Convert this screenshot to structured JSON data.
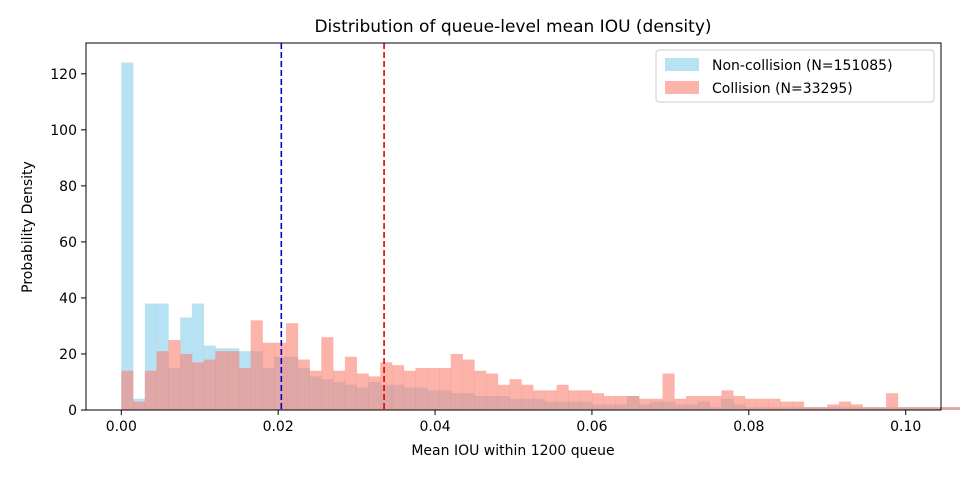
{
  "chart_data": {
    "type": "histogram",
    "title": "Distribution of queue-level mean IOU (density)",
    "xlabel": "Mean IOU within 1200 queue",
    "ylabel": "Probability Density",
    "xlim": [
      -0.0045,
      0.1045
    ],
    "ylim": [
      0,
      131
    ],
    "xticks": [
      "0.00",
      "0.02",
      "0.04",
      "0.06",
      "0.08",
      "0.10"
    ],
    "yticks": [
      "0",
      "20",
      "40",
      "60",
      "80",
      "100",
      "120"
    ],
    "bin_width": 0.0015,
    "bin_start": 0.0,
    "series": [
      {
        "name": "Non-collision (N=151085)",
        "color": "#87CEEB",
        "opacity": 0.6,
        "values": [
          124,
          4,
          38,
          38,
          15,
          33,
          38,
          23,
          22,
          22,
          21,
          21,
          15,
          19,
          19,
          15,
          12,
          11,
          10,
          9,
          8,
          10,
          9,
          9,
          8,
          8,
          7,
          7,
          6,
          6,
          5,
          5,
          5,
          4,
          4,
          4,
          3,
          3,
          3,
          3,
          2,
          2,
          2,
          5,
          2,
          3,
          3,
          2,
          2,
          3,
          1,
          4,
          2,
          1,
          1,
          1,
          1,
          1,
          1,
          1,
          1,
          1,
          1,
          1,
          1,
          1,
          1,
          1,
          1,
          1,
          1,
          1,
          1,
          1,
          1,
          1,
          1
        ]
      },
      {
        "name": "Collision (N=33295)",
        "color": "#FA8072",
        "opacity": 0.6,
        "values": [
          14,
          3,
          14,
          21,
          25,
          20,
          17,
          18,
          21,
          21,
          15,
          32,
          24,
          24,
          31,
          18,
          14,
          26,
          14,
          19,
          13,
          12,
          17,
          16,
          14,
          15,
          15,
          15,
          20,
          18,
          14,
          13,
          9,
          11,
          9,
          7,
          7,
          9,
          7,
          7,
          6,
          5,
          5,
          5,
          4,
          4,
          13,
          4,
          5,
          5,
          5,
          7,
          5,
          4,
          4,
          4,
          3,
          3,
          1,
          1,
          2,
          3,
          2,
          1,
          1,
          6,
          1,
          1,
          1,
          1,
          1,
          1,
          1,
          1,
          1,
          1,
          1
        ]
      }
    ],
    "vlines": [
      {
        "x": 0.0204,
        "color": "#0000CC",
        "style": "dashed"
      },
      {
        "x": 0.0335,
        "color": "#E00000",
        "style": "dashed"
      }
    ],
    "legend": {
      "placement": "top-right"
    }
  }
}
